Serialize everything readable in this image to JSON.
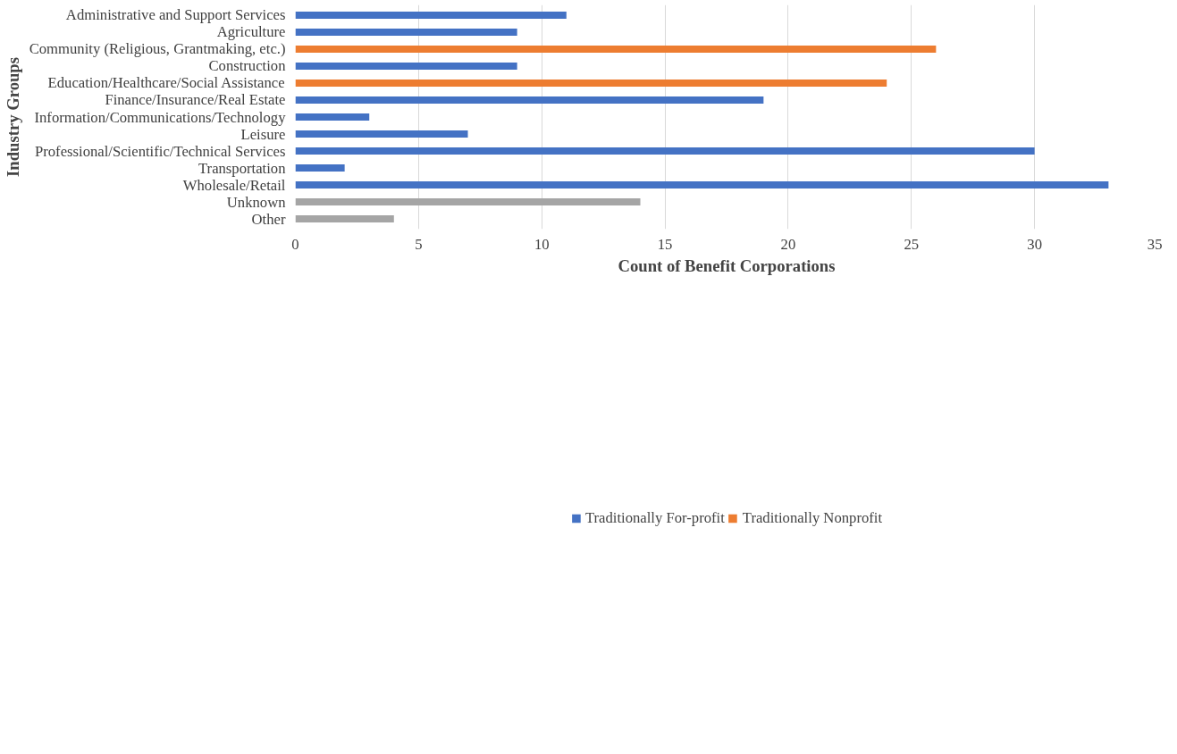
{
  "chart_data": {
    "type": "bar",
    "orientation": "horizontal",
    "stacked": true,
    "xlabel": "Count of Benefit Corporations",
    "ylabel": "Industry Groups",
    "categories": [
      "Administrative and Support Services",
      "Agriculture",
      "Community (Religious, Grantmaking, etc.)",
      "Construction",
      "Education/Healthcare/Social Assistance",
      "Finance/Insurance/Real Estate",
      "Information/Communications/Technology",
      "Leisure",
      "Professional/Scientific/Technical Services",
      "Transportation",
      "Wholesale/Retail",
      "Unknown",
      "Other"
    ],
    "series": [
      {
        "name": "Traditionally For-profit",
        "color": "#4472c4",
        "values": [
          11,
          9,
          null,
          9,
          null,
          19,
          3,
          7,
          30,
          2,
          33,
          null,
          null
        ]
      },
      {
        "name": "Traditionally Nonprofit",
        "color": "#ed7d31",
        "values": [
          null,
          null,
          26,
          null,
          24,
          null,
          null,
          null,
          null,
          null,
          null,
          null,
          null
        ]
      },
      {
        "color": "#a5a5a5",
        "values": [
          null,
          null,
          null,
          null,
          null,
          null,
          null,
          null,
          null,
          null,
          null,
          14,
          4
        ]
      }
    ],
    "xlim": [
      0,
      35
    ],
    "xticks": [
      0,
      5,
      10,
      15,
      20,
      25,
      30,
      35
    ],
    "grid": "x",
    "legend": "bottom"
  }
}
